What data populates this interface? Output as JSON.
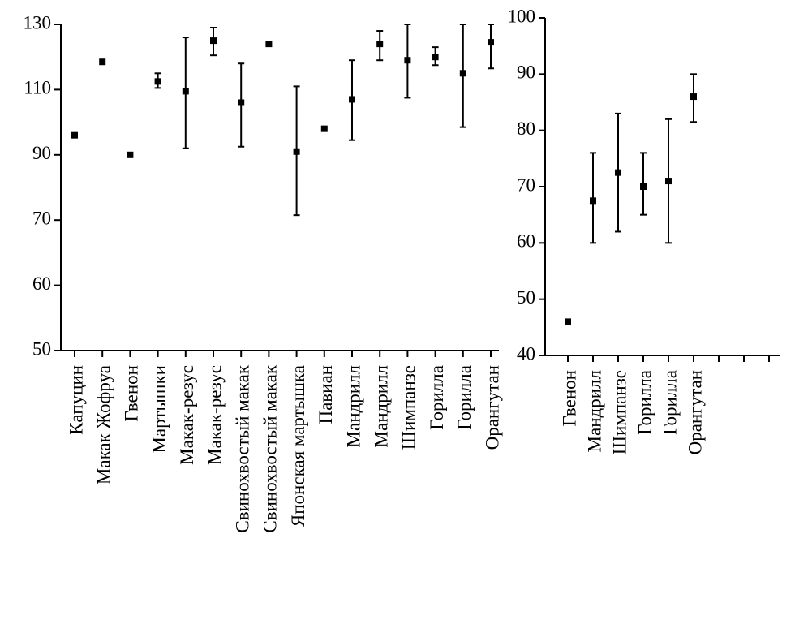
{
  "chart_data": [
    {
      "type": "errorbar",
      "categories": [
        "Капуцин",
        "Макак Жофруа",
        "Гвенон",
        "Мартышки",
        "Макак-резус",
        "Макак-резус",
        "Свинохвостый макак",
        "Свинохвостый макак",
        "Японская мартышка",
        "Павиан",
        "Мандрилл",
        "Мандрилл",
        "Шимпанзе",
        "Горилла",
        "Горилла",
        "Орангутан"
      ],
      "values": [
        96,
        118.5,
        90,
        112.5,
        109.5,
        125,
        106,
        124,
        91,
        98,
        107,
        124,
        119,
        120,
        115,
        124.5
      ],
      "low": [
        null,
        null,
        null,
        110.5,
        92,
        120.5,
        92.5,
        null,
        71.5,
        null,
        94.5,
        119,
        107.5,
        117.5,
        98.5,
        116.5
      ],
      "high": [
        null,
        null,
        null,
        115,
        126,
        129,
        118,
        null,
        111,
        null,
        119,
        128,
        130,
        123,
        130,
        130
      ],
      "color": "#000000",
      "ylim": [
        50,
        130
      ],
      "yticks": [
        50,
        60,
        70,
        90,
        110,
        130
      ]
    },
    {
      "type": "errorbar",
      "categories": [
        "Гвенон",
        "Мандрилл",
        "Шимпанзе",
        "Горилла",
        "Горилла",
        "Орангутан"
      ],
      "values": [
        46,
        67.5,
        72.5,
        70,
        71,
        86
      ],
      "low": [
        null,
        60,
        62,
        65,
        60,
        81.5
      ],
      "high": [
        null,
        76,
        83,
        76,
        82,
        90
      ],
      "color": "#000000",
      "ylim": [
        40,
        100
      ],
      "yticks": [
        40,
        50,
        60,
        70,
        80,
        90,
        100
      ]
    }
  ]
}
